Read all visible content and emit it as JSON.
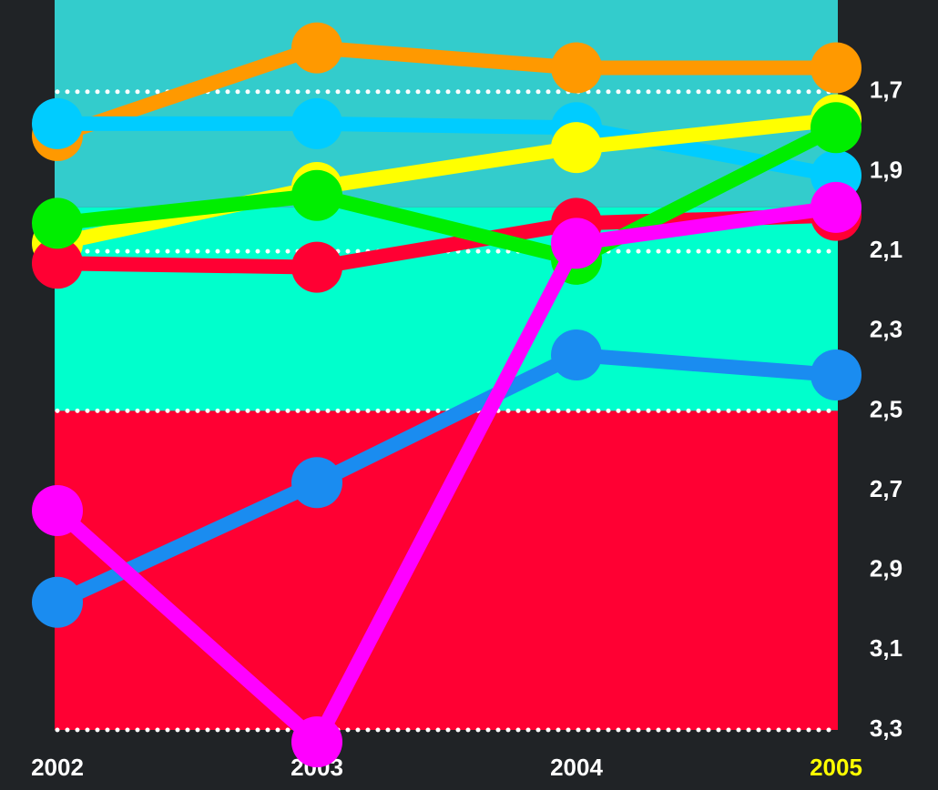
{
  "chart_data": {
    "type": "line",
    "categories": [
      "2002",
      "2003",
      "2004",
      "2005"
    ],
    "series": [
      {
        "name": "orange",
        "color": "#ff9900",
        "values": [
          1.81,
          1.59,
          1.64,
          1.64
        ]
      },
      {
        "name": "light blue",
        "color": "#00ccff",
        "values": [
          1.78,
          1.78,
          1.79,
          1.91
        ]
      },
      {
        "name": "yellow",
        "color": "#ffff00",
        "values": [
          2.08,
          1.94,
          1.84,
          1.77
        ]
      },
      {
        "name": "red",
        "color": "#ff0033",
        "values": [
          2.13,
          2.14,
          2.03,
          2.01
        ]
      },
      {
        "name": "green",
        "color": "#00ee00",
        "values": [
          2.03,
          1.96,
          2.12,
          1.79
        ]
      },
      {
        "name": "blue",
        "color": "#1a8cf0",
        "values": [
          2.98,
          2.68,
          2.36,
          2.41
        ]
      },
      {
        "name": "magenta",
        "color": "#ff00ff",
        "values": [
          2.75,
          3.33,
          2.08,
          1.99
        ]
      }
    ],
    "ylim": [
      1.47,
      3.3
    ],
    "inverted": true,
    "yticks": [
      {
        "value": 1.7,
        "label": "1,7"
      },
      {
        "value": 1.9,
        "label": "1,9"
      },
      {
        "value": 2.1,
        "label": "2,1"
      },
      {
        "value": 2.3,
        "label": "2,3"
      },
      {
        "value": 2.5,
        "label": "2,5"
      },
      {
        "value": 2.7,
        "label": "2,7"
      },
      {
        "value": 2.9,
        "label": "2,9"
      },
      {
        "value": 3.1,
        "label": "3,1"
      },
      {
        "value": 3.3,
        "label": "3,3"
      }
    ],
    "grid_lines": [
      1.7,
      2.1,
      2.5,
      3.3
    ],
    "bands": [
      {
        "from": 1.47,
        "to": 1.99,
        "color": "#33cccc"
      },
      {
        "from": 1.99,
        "to": 2.5,
        "color": "#00ffcc"
      },
      {
        "from": 2.5,
        "to": 3.3,
        "color": "#ff0033"
      }
    ],
    "highlight_index": 3,
    "highlight_color": "#ffff00"
  }
}
